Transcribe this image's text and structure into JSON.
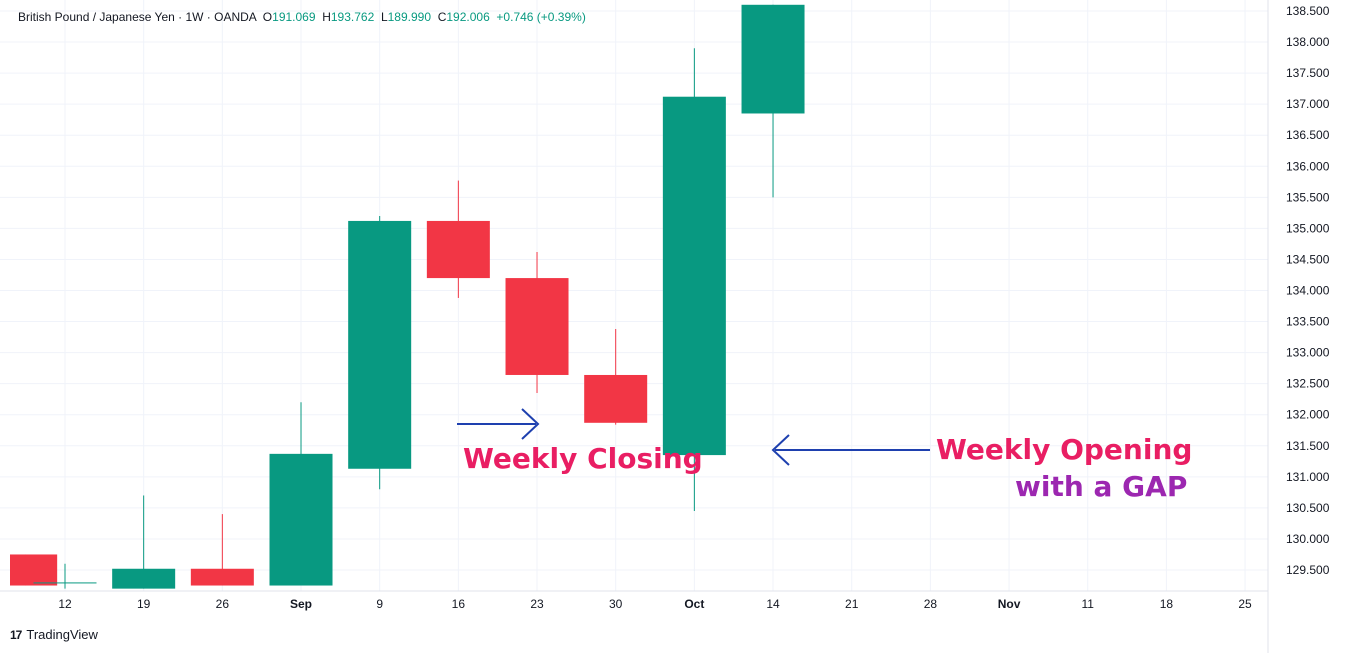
{
  "legend": {
    "symbol": "British Pound / Japanese Yen · 1W · OANDA",
    "open_label": "O",
    "open": "191.069",
    "high_label": "H",
    "high": "193.762",
    "low_label": "L",
    "low": "189.990",
    "close_label": "C",
    "close": "192.006",
    "change": "+0.746 (+0.39%)"
  },
  "annotations": {
    "weekly_closing": "Weekly Closing",
    "weekly_opening": "Weekly Opening",
    "with_gap": "with a GAP"
  },
  "branding": {
    "logo_mark": "17",
    "logo_text": "TradingView"
  },
  "colors": {
    "up": "#089981",
    "down": "#f23645",
    "grid": "#f0f3fa",
    "axis_text": "#131722",
    "arrow": "#1e40af",
    "annotation_pink": "#e91e63",
    "annotation_purple": "#9c27b0"
  },
  "icons": [
    "right-arrow-icon",
    "left-arrow-icon",
    "tradingview-logo-icon"
  ],
  "chart_data": {
    "type": "candlestick",
    "title": "British Pound / Japanese Yen · 1W · OANDA",
    "xlabel": "",
    "ylabel": "",
    "ylim": [
      129.1,
      138.6
    ],
    "grid": true,
    "x_ticks": [
      "12",
      "19",
      "26",
      "Sep",
      "9",
      "16",
      "23",
      "30",
      "Oct",
      "14",
      "21",
      "28",
      "Nov",
      "11",
      "18",
      "25"
    ],
    "y_ticks": [
      "129.500",
      "130.000",
      "130.500",
      "131.000",
      "131.500",
      "132.000",
      "132.500",
      "133.000",
      "133.500",
      "134.000",
      "134.500",
      "135.000",
      "135.500",
      "136.000",
      "136.500",
      "137.000",
      "137.500",
      "138.000",
      "138.500"
    ],
    "candles": [
      {
        "x": 4.5,
        "open": 129.75,
        "high": 129.75,
        "low": 129.25,
        "close": 129.25
      },
      {
        "x": 5,
        "open": 129.3,
        "high": 129.6,
        "low": 129.2,
        "close": 129.3
      },
      {
        "x": 6,
        "open": 129.2,
        "high": 130.7,
        "low": 129.2,
        "close": 129.52
      },
      {
        "x": 7,
        "open": 129.52,
        "high": 130.4,
        "low": 129.25,
        "close": 129.25
      },
      {
        "x": 8,
        "open": 129.25,
        "high": 132.2,
        "low": 129.25,
        "close": 131.37
      },
      {
        "x": 9,
        "open": 131.13,
        "high": 135.2,
        "low": 130.8,
        "close": 135.12
      },
      {
        "x": 10,
        "open": 135.12,
        "high": 135.77,
        "low": 133.88,
        "close": 134.2
      },
      {
        "x": 11,
        "open": 134.2,
        "high": 134.62,
        "low": 132.35,
        "close": 132.64
      },
      {
        "x": 12,
        "open": 132.64,
        "high": 133.38,
        "low": 131.84,
        "close": 131.87
      },
      {
        "x": 13,
        "open": 131.35,
        "high": 137.9,
        "low": 130.45,
        "close": 137.12
      },
      {
        "x": 14,
        "open": 136.85,
        "high": 138.6,
        "low": 135.5,
        "close": 138.6
      }
    ],
    "annotations": [
      "Weekly Closing",
      "Weekly Opening",
      "with a GAP"
    ]
  }
}
